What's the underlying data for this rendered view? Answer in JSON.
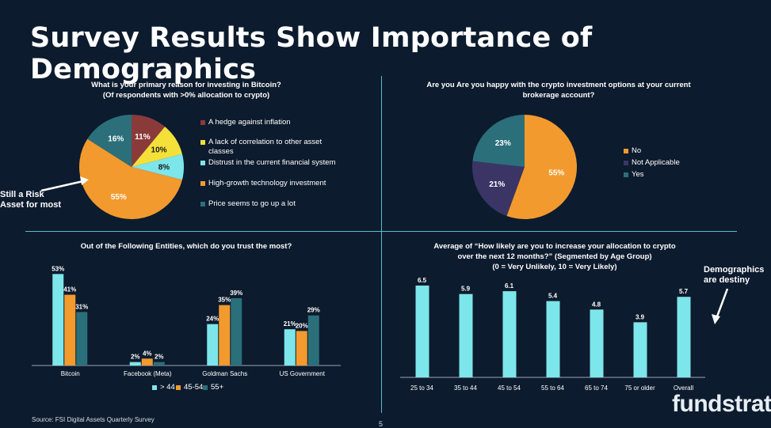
{
  "page": {
    "title": "Survey Results Show Importance of Demographics",
    "source": "Source: FSI Digital Assets Quarterly Survey",
    "page_number": "5",
    "brand": "fundstrat"
  },
  "colors": {
    "background": "#0d1b2e",
    "red": "#8b3a3a",
    "yellow": "#f5e03a",
    "cyan": "#7de6ea",
    "orange": "#f29a2e",
    "teal": "#2b6f7a",
    "purple": "#3b3566",
    "bar_cyan": "#7de6ea",
    "bar_orange": "#f29a2e",
    "bar_teal": "#2b6f7a"
  },
  "annotations": {
    "risk_asset": "Still a Risk Asset for most",
    "demographics": "Demographics are destiny"
  },
  "chart_data": [
    {
      "type": "pie",
      "id": "reasons",
      "title": "What is your primary reason for investing in Bitcoin?",
      "subtitle": "(Of respondents with >0% allocation to crypto)",
      "slices": [
        {
          "label": "A hedge against inflation",
          "value": 11,
          "display": "11%",
          "color": "#8b3a3a"
        },
        {
          "label": "A lack of correlation to other asset classes",
          "value": 10,
          "display": "10%",
          "color": "#f5e03a"
        },
        {
          "label": "Distrust in the current financial system",
          "value": 8,
          "display": "8%",
          "color": "#7de6ea"
        },
        {
          "label": "High-growth technology investment",
          "value": 55,
          "display": "55%",
          "color": "#f29a2e"
        },
        {
          "label": "Price seems to go up a lot",
          "value": 16,
          "display": "16%",
          "color": "#2b6f7a"
        }
      ]
    },
    {
      "type": "pie",
      "id": "happy",
      "title": "Are you Are you happy with the crypto investment options at your current brokerage account?",
      "slices": [
        {
          "label": "No",
          "value": 55,
          "display": "55%",
          "color": "#f29a2e"
        },
        {
          "label": "Not Applicable",
          "value": 21,
          "display": "21%",
          "color": "#3b3566"
        },
        {
          "label": "Yes",
          "value": 23,
          "display": "23%",
          "color": "#2b6f7a"
        }
      ]
    },
    {
      "type": "bar",
      "id": "trust",
      "title": "Out of the Following Entities, which do you trust the most?",
      "categories": [
        "Bitcoin",
        "Facebook (Meta)",
        "Goldman Sachs",
        "US Government"
      ],
      "series": [
        {
          "name": "> 44",
          "values": [
            53,
            2,
            24,
            21
          ],
          "labels": [
            "53%",
            "2%",
            "24%",
            "21%"
          ],
          "color": "#7de6ea"
        },
        {
          "name": "45-54",
          "values": [
            41,
            4,
            35,
            20
          ],
          "labels": [
            "41%",
            "4%",
            "35%",
            "20%"
          ],
          "color": "#f29a2e"
        },
        {
          "name": "55+",
          "values": [
            31,
            2,
            39,
            29
          ],
          "labels": [
            "31%",
            "2%",
            "39%",
            "29%"
          ],
          "color": "#2b6f7a"
        }
      ],
      "ylim": [
        0,
        55
      ]
    },
    {
      "type": "bar",
      "id": "likely",
      "title": "Average of “How likely are you to increase your allocation to crypto over the next 12 months?” (Segmented by Age Group)",
      "subtitle": "(0 = Very Unlikely, 10 = Very Likely)",
      "categories": [
        "25 to 34",
        "35 to 44",
        "45 to 54",
        "55 to 64",
        "65 to 74",
        "75 or older",
        "Overall"
      ],
      "values": [
        6.5,
        5.9,
        6.1,
        5.4,
        4.8,
        3.9,
        5.7
      ],
      "labels": [
        "6.5",
        "5.9",
        "6.1",
        "5.4",
        "4.8",
        "3.9",
        "5.7"
      ],
      "ylim": [
        0,
        7
      ]
    }
  ]
}
